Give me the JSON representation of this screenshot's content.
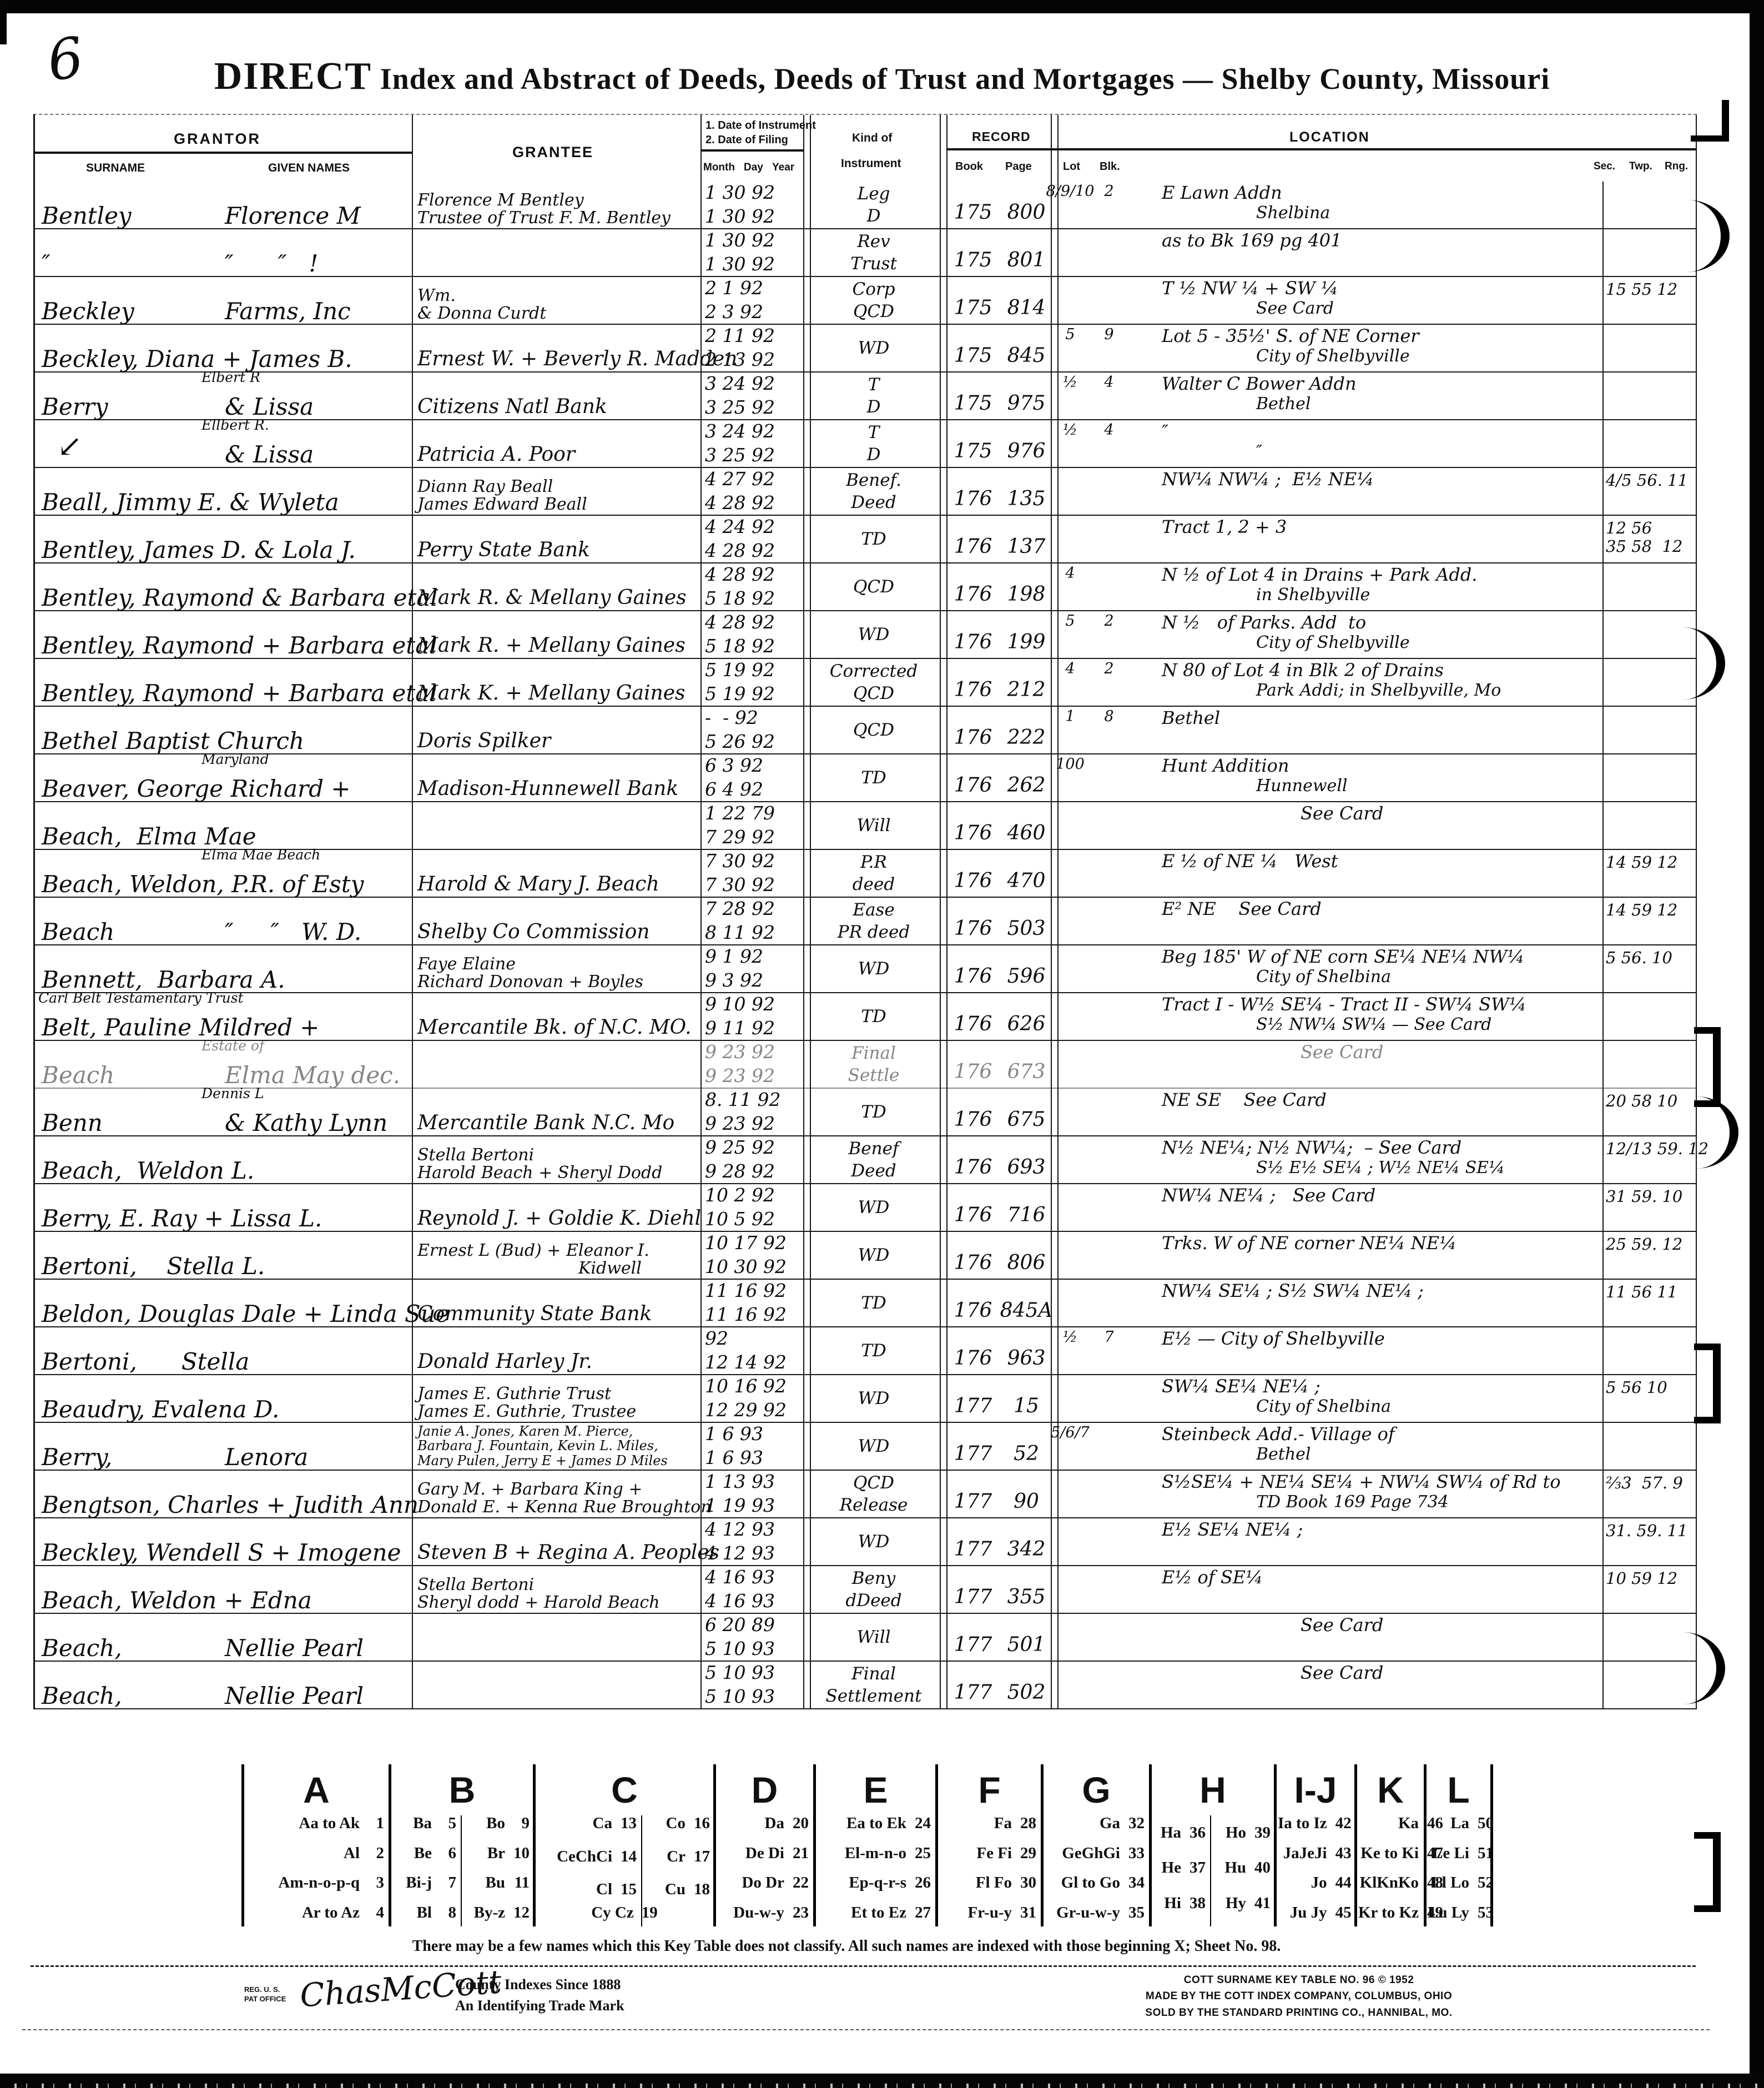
{
  "page": {
    "number": "6",
    "title_bold": "DIRECT",
    "title_rest": " Index and Abstract of Deeds, Deeds of Trust and Mortgages — Shelby County, Missouri"
  },
  "headers": {
    "grantor": "GRANTOR",
    "surname": "SURNAME",
    "given_names": "GIVEN NAMES",
    "grantee": "GRANTEE",
    "date_note1": "1. Date of Instrument",
    "date_note2": "2. Date of Filing",
    "month": "Month",
    "day": "Day",
    "year": "Year",
    "kind1": "Kind of",
    "kind2": "Instrument",
    "record": "RECORD",
    "book": "Book",
    "page": "Page",
    "lot": "Lot",
    "blk": "Blk.",
    "location": "LOCATION",
    "sec": "Sec.",
    "twp": "Twp.",
    "rng": "Rng."
  },
  "rows": [
    {
      "sur": "Bentley",
      "giv": "Florence M",
      "g": [
        "Florence M Bentley",
        "Trustee of Trust F. M. Bentley"
      ],
      "d1": "1 30 92",
      "d2": "1 30 92",
      "k1": "Leg",
      "k2": "D",
      "bk": "175",
      "pg": "800",
      "lot": "8/9/10",
      "blk": "2",
      "l1": "E Lawn Addn",
      "l2": "Shelbina",
      "sec": ""
    },
    {
      "sur": "″",
      "giv": "″      ″   !",
      "g": [],
      "d1": "1 30 92",
      "d2": "1 30 92",
      "k1": "Rev",
      "k2": "Trust",
      "bk": "175",
      "pg": "801",
      "l1": "as to Bk 169 pg 401"
    },
    {
      "sur": "Beckley",
      "giv": "Farms, Inc",
      "g": [
        "Wm.",
        "& Donna Curdt"
      ],
      "d1": "2 1 92",
      "d2": "2 3 92",
      "k1": "Corp",
      "k2": "QCD",
      "bk": "175",
      "pg": "814",
      "l1": "T ½ NW ¼ + SW ¼",
      "l2": "See Card",
      "sec": "15 55 12"
    },
    {
      "sur": "Beckley, Diana + James B.",
      "g": [
        "Ernest W. + Beverly R. Madden"
      ],
      "d1": "2 11 92",
      "d2": "2 13 92",
      "k1": "WD",
      "bk": "175",
      "pg": "845",
      "lot": "5",
      "blk": "9",
      "l1": "Lot 5 - 35½' S. of NE Corner",
      "l2": "City of Shelbyville"
    },
    {
      "pre": "Elbert R",
      "sur": "Berry",
      "giv": "& Lissa",
      "g": [
        "Citizens Natl Bank"
      ],
      "d1": "3 24 92",
      "d2": "3 25 92",
      "k1": "T",
      "k2": "D",
      "bk": "175",
      "pg": "975",
      "lot": "½",
      "blk": "4",
      "l1": "Walter C Bower Addn",
      "l2": "Bethel"
    },
    {
      "pre": "Ellbert R.",
      "sur": "",
      "giv": "& Lissa",
      "mark": "↙",
      "g": [
        "Patricia A. Poor"
      ],
      "d1": "3 24 92",
      "d2": "3 25 92",
      "k1": "T",
      "k2": "D",
      "bk": "175",
      "pg": "976",
      "lot": "½",
      "blk": "4",
      "l1": "″",
      "l2": "″"
    },
    {
      "sur": "Beall, Jimmy E. & Wyleta",
      "g": [
        "Diann Ray Beall",
        "James Edward Beall"
      ],
      "d1": "4 27 92",
      "d2": "4 28 92",
      "k1": "Benef.",
      "k2": "Deed",
      "bk": "176",
      "pg": "135",
      "l1": "NW¼ NW¼ ;  E½ NE¼",
      "sec": "4/5 56. 11"
    },
    {
      "sur": "Bentley, James D. & Lola J.",
      "g": [
        "Perry State Bank"
      ],
      "d1": "4 24 92",
      "d2": "4 28 92",
      "k1": "TD",
      "bk": "176",
      "pg": "137",
      "l1": "Tract 1, 2 + 3",
      "sec": "12 56",
      "sec2": "35 58  12"
    },
    {
      "sur": "Bentley, Raymond & Barbara etal",
      "g": [
        "Mark R. & Mellany Gaines"
      ],
      "d1": "4 28 92",
      "d2": "5 18 92",
      "k1": "QCD",
      "bk": "176",
      "pg": "198",
      "lot": "4",
      "l1": "N ½ of Lot 4 in Drains + Park Add.",
      "l2": "in Shelbyville"
    },
    {
      "sur": "Bentley, Raymond + Barbara etal",
      "g": [
        "Mark R. + Mellany Gaines"
      ],
      "d1": "4 28 92",
      "d2": "5 18 92",
      "k1": "WD",
      "bk": "176",
      "pg": "199",
      "lot": "5",
      "blk": "2",
      "l1": "N ½   of Parks. Add  to",
      "l2": "City of Shelbyville"
    },
    {
      "sur": "Bentley, Raymond + Barbara etal",
      "g": [
        "Mark K. + Mellany Gaines"
      ],
      "d1": "5 19 92",
      "d2": "5 19 92",
      "k1": "Corrected",
      "k2": "QCD",
      "bk": "176",
      "pg": "212",
      "lot": "4",
      "blk": "2",
      "l1": "N 80 of Lot 4 in Blk 2 of Drains",
      "l2": "Park Addi; in Shelbyville, Mo"
    },
    {
      "sur": "Bethel Baptist Church",
      "g": [
        "Doris Spilker"
      ],
      "d1": "-  - 92",
      "d2": "5 26 92",
      "k1": "QCD",
      "bk": "176",
      "pg": "222",
      "lot": "1",
      "blk": "8",
      "l1": "Bethel"
    },
    {
      "pre": "Maryland",
      "sur": "Beaver, George Richard +",
      "g": [
        "Madison-Hunnewell Bank"
      ],
      "d1": "6 3 92",
      "d2": "6 4 92",
      "k1": "TD",
      "bk": "176",
      "pg": "262",
      "lot": "100",
      "l1": "Hunt Addition",
      "l2": "Hunnewell"
    },
    {
      "sur": "Beach,  Elma Mae",
      "g": [],
      "d1": "1 22 79",
      "d2": "7 29 92",
      "k1": "Will",
      "bk": "176",
      "pg": "460",
      "l1": "See Card"
    },
    {
      "pre": "Elma Mae Beach",
      "sur": "Beach, Weldon, P.R. of Esty",
      "g": [
        "Harold & Mary J. Beach"
      ],
      "d1": "7 30 92",
      "d2": "7 30 92",
      "k1": "P.R",
      "k2": "deed",
      "bk": "176",
      "pg": "470",
      "l1": "E ½ of NE ¼   West",
      "sec": "14 59 12"
    },
    {
      "sur": "Beach",
      "giv": "″     ″   W. D.",
      "g": [
        "Shelby Co Commission"
      ],
      "d1": "7 28 92",
      "d2": "8 11 92",
      "k1": "Ease",
      "k2": "PR deed",
      "bk": "176",
      "pg": "503",
      "l1": "E² NE    See Card",
      "sec": "14 59 12"
    },
    {
      "sur": "Bennett,  Barbara A.",
      "g": [
        "Faye Elaine",
        "Richard Donovan + Boyles"
      ],
      "d1": "9 1 92",
      "d2": "9 3 92",
      "k1": "WD",
      "bk": "176",
      "pg": "596",
      "l1": "Beg 185' W of NE corn SE¼ NE¼ NW¼",
      "l2": "City of Shelbina",
      "sec": "5 56. 10"
    },
    {
      "pre": "Carl Belt Testamentary Trust",
      "sur": "Belt, Pauline Mildred +",
      "g": [
        "Mercantile Bk. of N.C. MO."
      ],
      "d1": "9 10 92",
      "d2": "9 11 92",
      "k1": "TD",
      "bk": "176",
      "pg": "626",
      "l1": "Tract I - W½ SE¼ - Tract II - SW¼ SW¼",
      "l2": "S½ NW¼ SW¼ — See Card"
    },
    {
      "pre": "Estate of",
      "sur": "Beach",
      "giv": "Elma May dec.",
      "g": [],
      "d1": "9 23 92",
      "d2": "9 23 92",
      "k1": "Final",
      "k2": "Settle",
      "bk": "176",
      "pg": "673",
      "l1": "See Card",
      "faint": true
    },
    {
      "pre": "Dennis L",
      "sur": "Benn",
      "giv": "& Kathy Lynn",
      "g": [
        "Mercantile Bank N.C. Mo"
      ],
      "d1": "8. 11 92",
      "d2": "9 23 92",
      "k1": "TD",
      "bk": "176",
      "pg": "675",
      "l1": "NE SE    See Card",
      "sec": "20 58 10"
    },
    {
      "sur": "Beach,  Weldon L.",
      "g": [
        "Stella Bertoni",
        "Harold Beach + Sheryl Dodd"
      ],
      "d1": "9 25 92",
      "d2": "9 28 92",
      "k1": "Benef",
      "k2": "Deed",
      "bk": "176",
      "pg": "693",
      "l1": "N½ NE¼; N½ NW¼;  – See Card",
      "l2": "S½ E½ SE¼ ; W½ NE¼ SE¼",
      "sec": "12/13 59. 12"
    },
    {
      "sur": "Berry, E. Ray + Lissa L.",
      "g": [
        "Reynold J. + Goldie K. Diehl"
      ],
      "d1": "10 2 92",
      "d2": "10 5 92",
      "k1": "WD",
      "bk": "176",
      "pg": "716",
      "l1": "NW¼ NE¼ ;   See Card",
      "sec": "31 59. 10"
    },
    {
      "sur": "Bertoni,    Stella L.",
      "g": [
        "Ernest L (Bud) + Eleanor I.",
        "Kidwell"
      ],
      "d1": "10 17 92",
      "d2": "10 30 92",
      "k1": "WD",
      "bk": "176",
      "pg": "806",
      "l1": "Trks. W of NE corner NE¼ NE¼",
      "sec": "25 59. 12"
    },
    {
      "sur": "Beldon, Douglas Dale + Linda Sue",
      "g": [
        "Community State Bank"
      ],
      "d1": "11 16 92",
      "d2": "11 16 92",
      "k1": "TD",
      "bk": "176",
      "pg": "845A",
      "l1": "NW¼ SE¼ ; S½ SW¼ NE¼ ;",
      "sec": "11 56 11"
    },
    {
      "sur": "Bertoni,      Stella",
      "g": [
        "Donald Harley Jr."
      ],
      "d1": "92",
      "d2": "12 14 92",
      "k1": "TD",
      "bk": "176",
      "pg": "963",
      "lot": "½",
      "blk": "7",
      "l1": "E½ — City of Shelbyville"
    },
    {
      "sur": "Beaudry, Evalena D.",
      "g": [
        "James E. Guthrie Trust",
        "James E. Guthrie, Trustee"
      ],
      "d1": "10 16 92",
      "d2": "12 29 92",
      "k1": "WD",
      "bk": "177",
      "pg": "15",
      "l1": "SW¼ SE¼ NE¼ ;",
      "l2": "City of Shelbina",
      "sec": "5 56 10"
    },
    {
      "sur": "Berry,",
      "giv": "Lenora",
      "g": [
        "Janie A. Jones, Karen M. Pierce,",
        "Barbara J. Fountain, Kevin L. Miles,",
        "Mary Pulen, Jerry E + James D Miles"
      ],
      "d1": "1 6 93",
      "d2": "1 6 93",
      "k1": "WD",
      "bk": "177",
      "pg": "52",
      "lot": "5/6/7",
      "l1": "Steinbeck Add.- Village of",
      "l2": "Bethel"
    },
    {
      "sur": "Bengtson, Charles + Judith Ann",
      "g": [
        "Gary M. + Barbara King +",
        "Donald E. + Kenna Rue Broughton"
      ],
      "d1": "1 13 93",
      "d2": "1 19 93",
      "k1": "QCD",
      "k2": "Release",
      "bk": "177",
      "pg": "90",
      "l1": "S½SE¼ + NE¼ SE¼ + NW¼ SW¼ of Rd to",
      "l2": "TD Book 169 Page 734",
      "sec": "⅔3  57. 9"
    },
    {
      "sur": "Beckley, Wendell S + Imogene",
      "g": [
        "Steven B + Regina A. Peoples"
      ],
      "d1": "4 12 93",
      "d2": "4 12 93",
      "k1": "WD",
      "bk": "177",
      "pg": "342",
      "l1": "E½ SE¼ NE¼ ;",
      "sec": "31. 59. 11"
    },
    {
      "sur": "Beach, Weldon + Edna",
      "g": [
        "Stella Bertoni",
        "Sheryl dodd + Harold Beach"
      ],
      "d1": "4 16 93",
      "d2": "4 16 93",
      "k1": "Beny",
      "k2": "dDeed",
      "bk": "177",
      "pg": "355",
      "l1": "E½ of SE¼",
      "sec": "10 59 12"
    },
    {
      "sur": "Beach,",
      "giv": "Nellie Pearl",
      "g": [],
      "d1": "6 20 89",
      "d2": "5 10 93",
      "k1": "Will",
      "bk": "177",
      "pg": "501",
      "l1": "See Card"
    },
    {
      "sur": "Beach,",
      "giv": "Nellie Pearl",
      "g": [],
      "d1": "5 10 93",
      "d2": "5 10 93",
      "k1": "Final",
      "k2": "Settlement",
      "bk": "177",
      "pg": "502",
      "l1": "See Card"
    }
  ],
  "key_table": {
    "groups": [
      {
        "letter": "A",
        "cols": [
          [
            [
              "Aa to Ak",
              "1"
            ],
            [
              "Al",
              "2"
            ],
            [
              "Am-n-o-p-q",
              "3"
            ],
            [
              "Ar to Az",
              "4"
            ]
          ]
        ]
      },
      {
        "letter": "B",
        "cols": [
          [
            [
              "Ba",
              "5"
            ],
            [
              "Be",
              "6"
            ],
            [
              "Bi-j",
              "7"
            ],
            [
              "Bl",
              "8"
            ]
          ],
          [
            [
              "Bo",
              "9"
            ],
            [
              "Br",
              "10"
            ],
            [
              "Bu",
              "11"
            ],
            [
              "By-z",
              "12"
            ]
          ]
        ]
      },
      {
        "letter": "C",
        "cols": [
          [
            [
              "Ca",
              "13"
            ],
            [
              "CeChCi",
              "14"
            ],
            [
              "Cl",
              "15"
            ]
          ],
          [
            [
              "Co",
              "16"
            ],
            [
              "Cr",
              "17"
            ],
            [
              "Cu",
              "18"
            ]
          ]
        ],
        "span": [
          "Cy Cz",
          "19"
        ]
      },
      {
        "letter": "D",
        "cols": [
          [
            [
              "Da",
              "20"
            ],
            [
              "De Di",
              "21"
            ],
            [
              "Do Dr",
              "22"
            ],
            [
              "Du-w-y",
              "23"
            ]
          ]
        ]
      },
      {
        "letter": "E",
        "cols": [
          [
            [
              "Ea to Ek",
              "24"
            ],
            [
              "El-m-n-o",
              "25"
            ],
            [
              "Ep-q-r-s",
              "26"
            ],
            [
              "Et to Ez",
              "27"
            ]
          ]
        ]
      },
      {
        "letter": "F",
        "cols": [
          [
            [
              "Fa",
              "28"
            ],
            [
              "Fe Fi",
              "29"
            ],
            [
              "Fl Fo",
              "30"
            ],
            [
              "Fr-u-y",
              "31"
            ]
          ]
        ]
      },
      {
        "letter": "G",
        "cols": [
          [
            [
              "Ga",
              "32"
            ],
            [
              "GeGhGi",
              "33"
            ],
            [
              "Gl to Go",
              "34"
            ],
            [
              "Gr-u-w-y",
              "35"
            ]
          ]
        ]
      },
      {
        "letter": "H",
        "cols": [
          [
            [
              "Ha",
              "36"
            ],
            [
              "He",
              "37"
            ],
            [
              "Hi",
              "38"
            ]
          ],
          [
            [
              "Ho",
              "39"
            ],
            [
              "Hu",
              "40"
            ],
            [
              "Hy",
              "41"
            ]
          ]
        ]
      },
      {
        "letter": "I-J",
        "cols": [
          [
            [
              "Ia to Iz",
              "42"
            ],
            [
              "JaJeJi",
              "43"
            ],
            [
              "Jo",
              "44"
            ],
            [
              "Ju Jy",
              "45"
            ]
          ]
        ]
      },
      {
        "letter": "K",
        "cols": [
          [
            [
              "Ka",
              "46"
            ],
            [
              "Ke to Ki",
              "47"
            ],
            [
              "KlKnKo",
              "48"
            ],
            [
              "Kr to Kz",
              "49"
            ]
          ]
        ]
      },
      {
        "letter": "L",
        "cols": [
          [
            [
              "La",
              "50"
            ],
            [
              "Le Li",
              "51"
            ],
            [
              "Ll Lo",
              "52"
            ],
            [
              "Lu Ly",
              "53"
            ]
          ]
        ]
      }
    ],
    "note": "There may be a few names which this Key Table does not classify.   All such names are indexed with those beginning X; Sheet No. 98."
  },
  "footer": {
    "reg1": "REG. U. S.",
    "reg2": "PAT OFFICE",
    "logo": "ChasMcCott",
    "tm1": "County Indexes Since 1888",
    "tm2": "An Identifying Trade Mark",
    "r1": "COTT SURNAME KEY TABLE NO. 96 © 1952",
    "r2": "MADE BY THE COTT INDEX COMPANY, COLUMBUS, OHIO",
    "r3": "SOLD BY THE STANDARD PRINTING CO., HANNIBAL, MO."
  }
}
